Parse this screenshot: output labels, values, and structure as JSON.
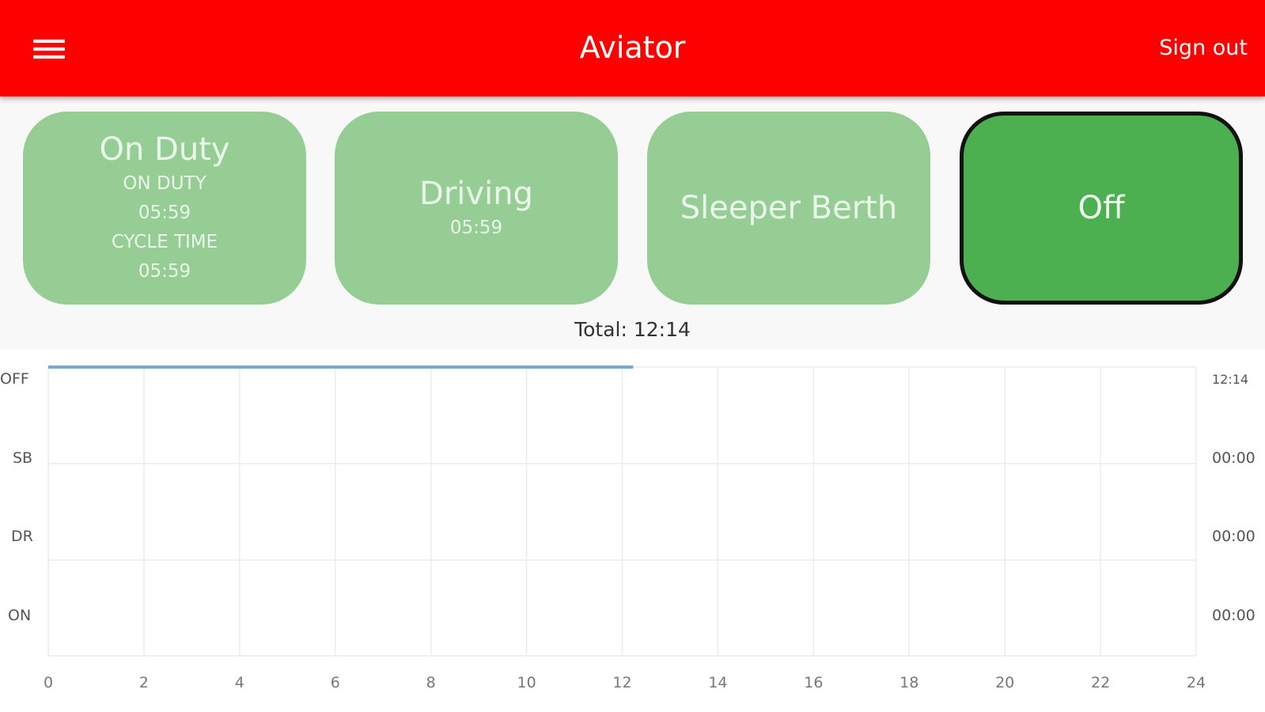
{
  "header": {
    "title": "Aviator",
    "sign_out": "Sign out",
    "menu_icon": "hamburger-menu-icon",
    "color": "#ff0000"
  },
  "status_buttons": [
    {
      "label": "On Duty",
      "lines": [
        "ON DUTY",
        "05:59",
        "CYCLE TIME",
        "05:59"
      ],
      "active": false
    },
    {
      "label": "Driving",
      "lines": [
        "05:59"
      ],
      "active": false
    },
    {
      "label": "Sleeper Berth",
      "lines": [],
      "active": false
    },
    {
      "label": "Off",
      "lines": [],
      "active": true
    }
  ],
  "colors": {
    "inactive": "#95cd95",
    "active": "#4caf50",
    "line": "#7aa7d0"
  },
  "total": "Total: 12:14",
  "chart_data": {
    "type": "line",
    "x_ticks": [
      "0",
      "2",
      "4",
      "6",
      "8",
      "10",
      "12",
      "14",
      "16",
      "18",
      "20",
      "22",
      "24"
    ],
    "xlim": [
      0,
      24
    ],
    "y_categories": [
      "OFF",
      "SB",
      "DR",
      "ON"
    ],
    "right_labels": [
      "12:14",
      "00:00",
      "00:00",
      "00:00"
    ],
    "grid": true,
    "segments": [
      {
        "status": "OFF",
        "start": 0,
        "end": 12.23
      }
    ]
  }
}
